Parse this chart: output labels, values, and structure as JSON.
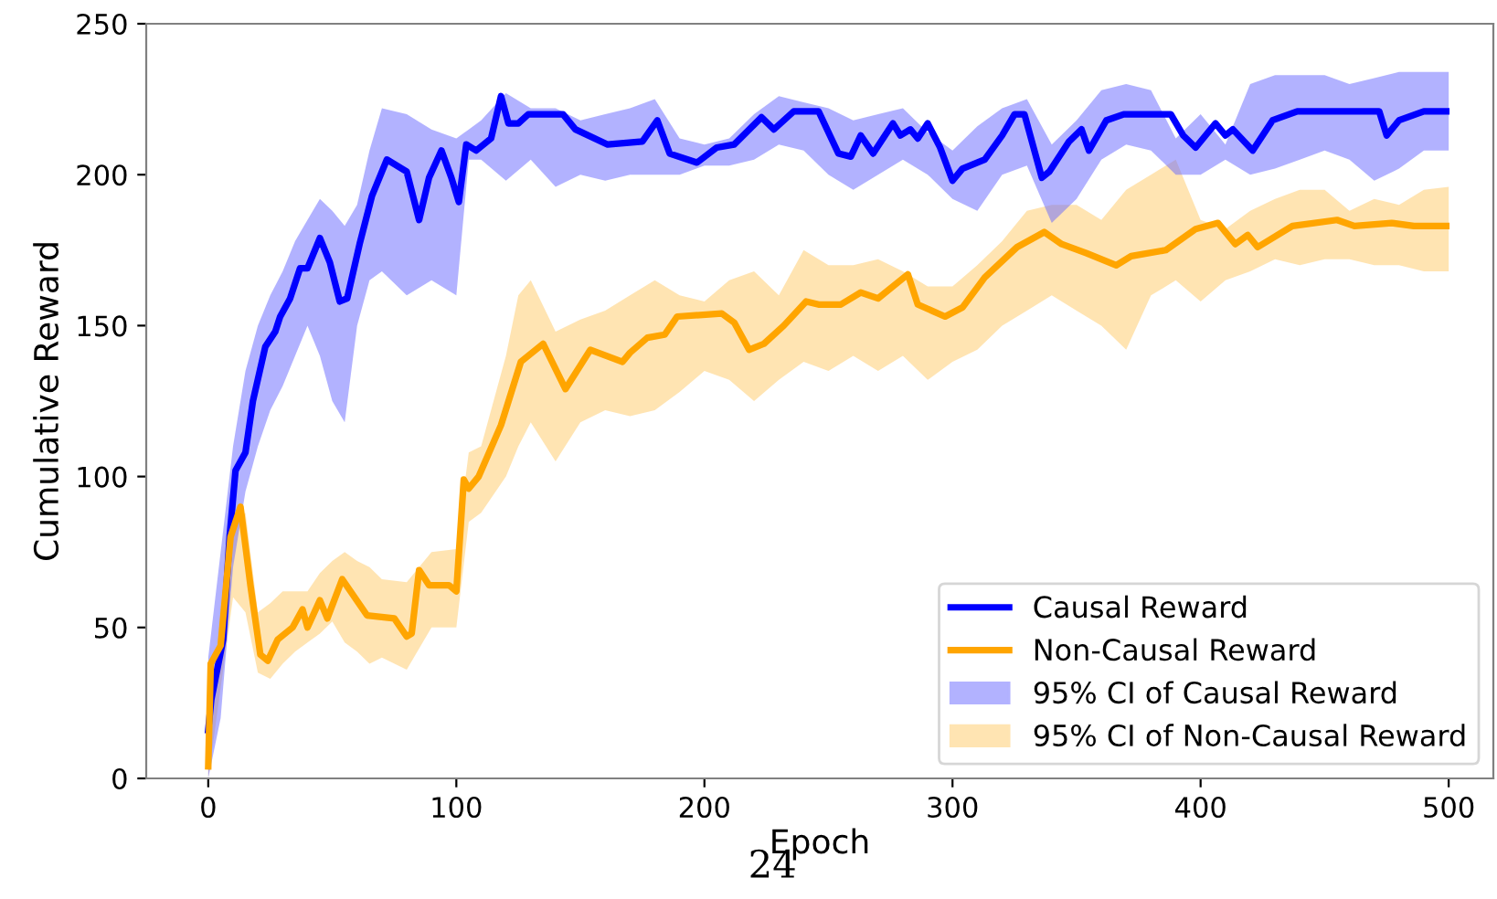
{
  "chart_data": {
    "type": "line",
    "xlabel": "Epoch",
    "ylabel": "Cumulative Reward",
    "annotations": [
      "24"
    ],
    "xlim": [
      -25,
      518
    ],
    "ylim": [
      0,
      250
    ],
    "xticks": [
      0,
      100,
      200,
      300,
      400,
      500
    ],
    "yticks": [
      0,
      50,
      100,
      150,
      200,
      250
    ],
    "grid": false,
    "legend": "bottom right",
    "marker": "none",
    "line_style": "solid",
    "series": [
      {
        "type": "area",
        "name": "95% CI of Non-Causal Reward",
        "color": "#ffe4b2",
        "x": [
          0,
          5,
          10,
          15,
          20,
          25,
          30,
          35,
          40,
          45,
          50,
          55,
          60,
          65,
          70,
          80,
          90,
          100,
          105,
          110,
          120,
          125,
          130,
          140,
          150,
          160,
          170,
          180,
          190,
          200,
          210,
          220,
          230,
          240,
          250,
          260,
          270,
          280,
          290,
          300,
          310,
          320,
          330,
          340,
          350,
          360,
          370,
          380,
          390,
          400,
          410,
          420,
          430,
          440,
          450,
          460,
          470,
          480,
          490,
          500
        ],
        "values": [
          null,
          null,
          null,
          null,
          null,
          null,
          null,
          null,
          null,
          null,
          null,
          null,
          null,
          null,
          null,
          null,
          null,
          null,
          null,
          null,
          null,
          null,
          null,
          null,
          null,
          null,
          null,
          null,
          null,
          null,
          null,
          null,
          null,
          null,
          null,
          null,
          null,
          null,
          null,
          null,
          null,
          null,
          null,
          null,
          null,
          null,
          null,
          null,
          null,
          null,
          null,
          null,
          null,
          null,
          null,
          null,
          null,
          null,
          null,
          null
        ],
        "upper": [
          10,
          55,
          85,
          88,
          55,
          58,
          62,
          62,
          62,
          68,
          72,
          75,
          72,
          70,
          66,
          65,
          75,
          76,
          108,
          110,
          140,
          160,
          165,
          148,
          152,
          155,
          160,
          165,
          160,
          158,
          165,
          168,
          160,
          175,
          170,
          170,
          172,
          168,
          163,
          163,
          170,
          178,
          188,
          190,
          190,
          185,
          195,
          200,
          205,
          185,
          182,
          188,
          192,
          195,
          195,
          188,
          192,
          190,
          195,
          196
        ],
        "lower": [
          0,
          30,
          60,
          55,
          35,
          33,
          38,
          42,
          45,
          48,
          52,
          45,
          42,
          38,
          40,
          36,
          50,
          50,
          85,
          88,
          100,
          110,
          118,
          105,
          118,
          122,
          120,
          122,
          128,
          135,
          132,
          125,
          132,
          138,
          135,
          140,
          135,
          140,
          132,
          138,
          142,
          150,
          155,
          160,
          155,
          150,
          142,
          160,
          165,
          158,
          165,
          168,
          172,
          170,
          172,
          172,
          170,
          170,
          168,
          168
        ]
      },
      {
        "type": "area",
        "name": "95% CI of Causal Reward",
        "color": "#b2b2ff",
        "x": [
          0,
          5,
          10,
          15,
          20,
          25,
          30,
          35,
          40,
          45,
          50,
          55,
          60,
          65,
          70,
          80,
          90,
          100,
          105,
          110,
          120,
          130,
          140,
          150,
          160,
          170,
          180,
          190,
          200,
          210,
          220,
          230,
          240,
          250,
          260,
          270,
          280,
          290,
          300,
          310,
          320,
          330,
          340,
          350,
          360,
          370,
          380,
          390,
          400,
          410,
          420,
          430,
          440,
          450,
          460,
          470,
          480,
          490,
          500
        ],
        "values": [
          null,
          null,
          null,
          null,
          null,
          null,
          null,
          null,
          null,
          null,
          null,
          null,
          null,
          null,
          null,
          null,
          null,
          null,
          null,
          null,
          null,
          null,
          null,
          null,
          null,
          null,
          null,
          null,
          null,
          null,
          null,
          null,
          null,
          null,
          null,
          null,
          null,
          null,
          null,
          null,
          null,
          null,
          null,
          null,
          null,
          null,
          null,
          null,
          null,
          null,
          null,
          null,
          null,
          null,
          null,
          null,
          null,
          null,
          null
        ],
        "upper": [
          40,
          75,
          110,
          135,
          150,
          160,
          168,
          178,
          185,
          192,
          188,
          183,
          190,
          208,
          222,
          220,
          215,
          212,
          215,
          218,
          227,
          222,
          222,
          218,
          220,
          222,
          225,
          212,
          210,
          212,
          220,
          226,
          224,
          222,
          218,
          220,
          222,
          214,
          208,
          216,
          222,
          225,
          210,
          218,
          228,
          230,
          228,
          212,
          220,
          210,
          230,
          233,
          233,
          233,
          230,
          232,
          234,
          234,
          234
        ],
        "lower": [
          0,
          20,
          70,
          95,
          110,
          122,
          130,
          140,
          150,
          140,
          125,
          118,
          150,
          165,
          168,
          160,
          165,
          160,
          205,
          205,
          198,
          205,
          196,
          200,
          198,
          200,
          200,
          200,
          203,
          203,
          205,
          210,
          208,
          200,
          195,
          200,
          205,
          200,
          192,
          188,
          200,
          203,
          184,
          192,
          205,
          210,
          208,
          200,
          200,
          205,
          200,
          202,
          205,
          208,
          205,
          198,
          202,
          208,
          208
        ]
      },
      {
        "name": "Causal Reward",
        "color": "#0000ff",
        "x": [
          0,
          1.2,
          6,
          8.6,
          11,
          15,
          18,
          23,
          27,
          29,
          33,
          37,
          40,
          45,
          49,
          53,
          56,
          61,
          66,
          72,
          80,
          85,
          89,
          94,
          98,
          101,
          104,
          108,
          114,
          118,
          121,
          125,
          129,
          143,
          148,
          161,
          175,
          181,
          186,
          197,
          205,
          212,
          223,
          228,
          236,
          246,
          254,
          259,
          263,
          268,
          276,
          279,
          283,
          286,
          290,
          295,
          300,
          304,
          313,
          320,
          325,
          329,
          336,
          339,
          347,
          352,
          355,
          362,
          369,
          376,
          388,
          393,
          398,
          406,
          410,
          413,
          421,
          429,
          439,
          472,
          475,
          480,
          490,
          499
        ],
        "values": [
          16,
          26,
          46,
          80,
          102,
          108,
          125,
          143,
          148,
          153,
          159,
          169,
          169,
          179,
          171,
          158,
          159,
          177,
          193,
          205,
          201,
          185,
          199,
          208,
          199,
          191,
          210,
          208,
          212,
          226,
          217,
          217,
          220,
          220,
          215,
          210,
          211,
          218,
          207,
          204,
          209,
          210,
          219,
          215,
          221,
          221,
          207,
          206,
          213,
          207,
          217,
          213,
          215,
          212,
          217,
          209,
          198,
          202,
          205,
          213,
          220,
          220,
          199,
          201,
          211,
          215,
          208,
          218,
          220,
          220,
          220,
          213,
          209,
          217,
          213,
          215,
          208,
          218,
          221,
          221,
          213,
          218,
          221,
          221
        ]
      },
      {
        "name": "Non-Causal Reward",
        "color": "#ffa500",
        "x": [
          0,
          1,
          5,
          9,
          13,
          17,
          21,
          24,
          28,
          34,
          38,
          40,
          45,
          48,
          54,
          64,
          75,
          80,
          82,
          85,
          89,
          97,
          100,
          103,
          105,
          109,
          118,
          126,
          135,
          144,
          154,
          167,
          170,
          177,
          184,
          189,
          207,
          212,
          218,
          224,
          232,
          241,
          246,
          255,
          263,
          270,
          282,
          286,
          297,
          304,
          313,
          326,
          337,
          344,
          354,
          366,
          372,
          386,
          398,
          407,
          414,
          419,
          423,
          437,
          455,
          462,
          477,
          486,
          499
        ],
        "values": [
          4,
          38,
          44,
          80,
          90,
          64,
          41,
          39,
          46,
          50,
          56,
          50,
          59,
          53,
          66,
          54,
          53,
          47,
          48,
          69,
          64,
          64,
          62,
          99,
          96,
          100,
          117,
          138,
          144,
          129,
          142,
          138,
          141,
          146,
          147,
          153,
          154,
          151,
          142,
          144,
          150,
          158,
          157,
          157,
          161,
          159,
          167,
          157,
          153,
          156,
          166,
          176,
          181,
          177,
          174,
          170,
          173,
          175,
          182,
          184,
          177,
          180,
          176,
          183,
          185,
          183,
          184,
          183,
          183
        ]
      }
    ]
  }
}
